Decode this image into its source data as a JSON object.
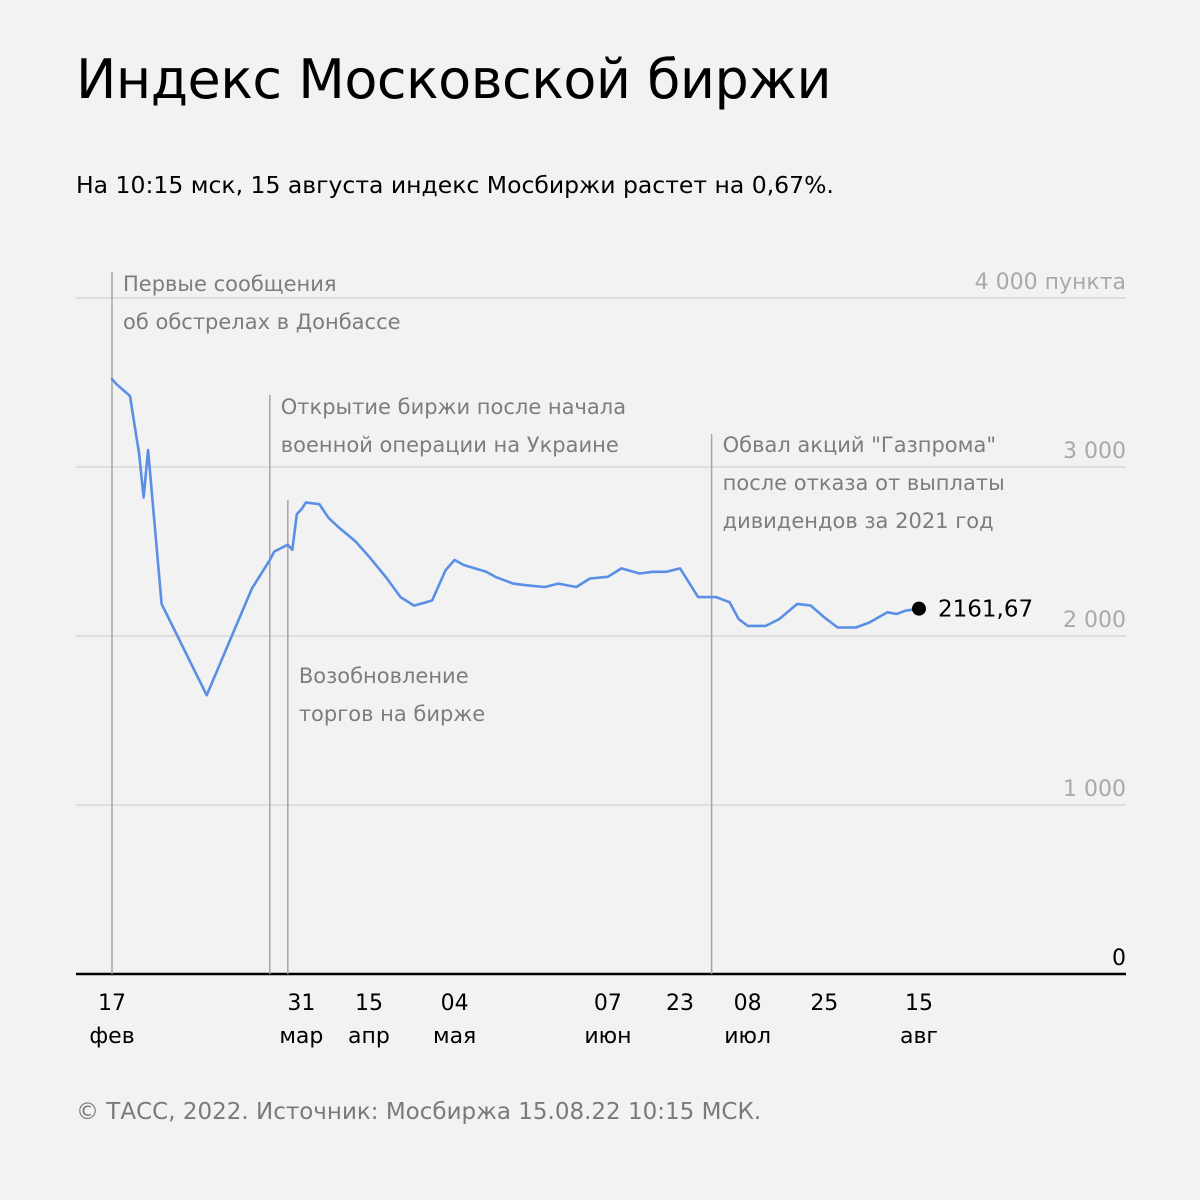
{
  "title": "Индекс Московской биржи",
  "subtitle": "На 10:15 мск, 15 августа индекс Мосбиржи растет на 0,67%.",
  "source": "© ТАСС, 2022. Источник: Мосбиржа 15.08.22 10:15 МСК.",
  "colors": {
    "background": "#f2f2f2",
    "line": "#5b8fe6",
    "annotation": "#7d7d7d",
    "grid": "#d7d7d7"
  },
  "chart_data": {
    "type": "line",
    "title": "Индекс Московской биржи",
    "xlabel": "",
    "ylabel": "",
    "ylim": [
      0,
      4000
    ],
    "grid": true,
    "yticks": [
      {
        "value": 4000,
        "label": "4 000 пункта"
      },
      {
        "value": 3000,
        "label": "3 000"
      },
      {
        "value": 2000,
        "label": "2 000"
      },
      {
        "value": 1000,
        "label": "1 000"
      },
      {
        "value": 0,
        "label": "0"
      }
    ],
    "xticks": [
      {
        "date": "2022-02-17",
        "day": "17",
        "month": "фев"
      },
      {
        "date": "2022-03-31",
        "day": "31",
        "month": "мар"
      },
      {
        "date": "2022-04-15",
        "day": "15",
        "month": "апр"
      },
      {
        "date": "2022-05-04",
        "day": "04",
        "month": "мая"
      },
      {
        "date": "2022-06-07",
        "day": "07",
        "month": "июн"
      },
      {
        "date": "2022-06-23",
        "day": "23",
        "month": ""
      },
      {
        "date": "2022-07-08",
        "day": "08",
        "month": "июл"
      },
      {
        "date": "2022-07-25",
        "day": "25",
        "month": ""
      },
      {
        "date": "2022-08-15",
        "day": "15",
        "month": "авг"
      }
    ],
    "series": [
      {
        "x": [
          "2022-02-17",
          "2022-02-18",
          "2022-02-21",
          "2022-02-22",
          "2022-02-23",
          "2022-02-24",
          "2022-02-25",
          "2022-02-28",
          "2022-03-10",
          "2022-03-20",
          "2022-03-24",
          "2022-03-25",
          "2022-03-28",
          "2022-03-29",
          "2022-03-30",
          "2022-03-31",
          "2022-04-01",
          "2022-04-04",
          "2022-04-06",
          "2022-04-08",
          "2022-04-12",
          "2022-04-15",
          "2022-04-19",
          "2022-04-22",
          "2022-04-25",
          "2022-04-29",
          "2022-05-02",
          "2022-05-04",
          "2022-05-06",
          "2022-05-11",
          "2022-05-13",
          "2022-05-17",
          "2022-05-20",
          "2022-05-24",
          "2022-05-27",
          "2022-05-31",
          "2022-06-03",
          "2022-06-07",
          "2022-06-10",
          "2022-06-14",
          "2022-06-17",
          "2022-06-20",
          "2022-06-23",
          "2022-06-27",
          "2022-06-29",
          "2022-06-30",
          "2022-07-01",
          "2022-07-04",
          "2022-07-06",
          "2022-07-08",
          "2022-07-12",
          "2022-07-15",
          "2022-07-19",
          "2022-07-22",
          "2022-07-25",
          "2022-07-28",
          "2022-08-01",
          "2022-08-04",
          "2022-08-08",
          "2022-08-10",
          "2022-08-12",
          "2022-08-15"
        ],
        "y": [
          3520,
          3490,
          3420,
          3250,
          3080,
          2820,
          3100,
          2190,
          1650,
          2280,
          2450,
          2500,
          2540,
          2510,
          2720,
          2750,
          2790,
          2780,
          2700,
          2650,
          2560,
          2470,
          2340,
          2230,
          2180,
          2210,
          2390,
          2450,
          2420,
          2380,
          2350,
          2310,
          2300,
          2290,
          2310,
          2290,
          2340,
          2350,
          2400,
          2370,
          2380,
          2380,
          2400,
          2230,
          2230,
          2230,
          2230,
          2200,
          2100,
          2060,
          2060,
          2100,
          2190,
          2180,
          2110,
          2050,
          2050,
          2080,
          2140,
          2130,
          2150,
          2161.67
        ]
      }
    ],
    "last_value_label": "2161,67",
    "annotations": [
      {
        "date": "2022-02-17",
        "lines": [
          "Первые сообщения",
          "об обстрелах в Донбассе"
        ]
      },
      {
        "date": "2022-03-24",
        "lines": [
          "Открытие биржи после начала",
          "военной операции на Украине"
        ]
      },
      {
        "date": "2022-03-28",
        "lines": [
          "Возобновление",
          "торгов на бирже"
        ]
      },
      {
        "date": "2022-06-30",
        "lines": [
          "Обвал акций \"Газпрома\"",
          "после отказа от выплаты",
          "дивидендов за 2021 год"
        ]
      }
    ]
  }
}
